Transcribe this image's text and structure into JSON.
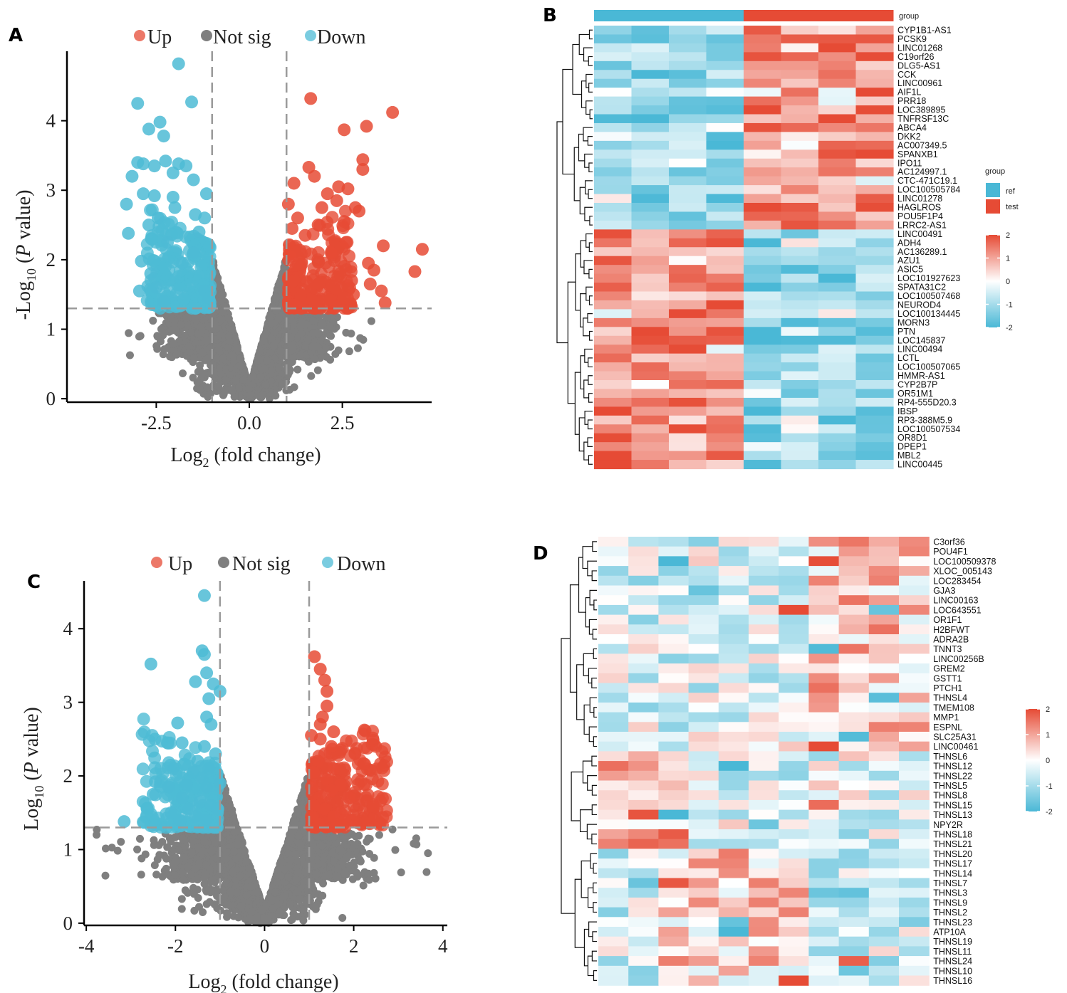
{
  "panels": {
    "A": "A",
    "B": "B",
    "C": "C",
    "D": "D"
  },
  "colors": {
    "up": "#e64b35",
    "down": "#4dbbd5",
    "not_sig": "#7f7f7f",
    "heat_low": "#4ab8d6",
    "heat_mid": "#ffffff",
    "heat_high": "#e64b35"
  },
  "chart_data": [
    {
      "id": "A",
      "type": "scatter",
      "legend": [
        "Up",
        "Not sig",
        "Down"
      ],
      "legend_placement": "top",
      "xlabel_main": "Log",
      "xlabel_sub": "2",
      "xlabel_rest": " (fold change)",
      "ylabel_main": "-Log",
      "ylabel_sub": "10",
      "ylabel_italic": "P",
      "ylabel_rest": " value)",
      "ylabel_open": " (",
      "x_ticks": [
        "-2.5",
        "0.0",
        "2.5"
      ],
      "x_tick_values": [
        -2.5,
        0.0,
        2.5
      ],
      "y_ticks": [
        "0",
        "1",
        "2",
        "3",
        "4"
      ],
      "y_tick_values": [
        0,
        1,
        2,
        3,
        4
      ],
      "xlim": [
        -4.9,
        4.9
      ],
      "ylim": [
        -0.05,
        5.0
      ],
      "fc_threshold": 1,
      "p_threshold": 1.3,
      "up_points": [
        [
          1.65,
          4.32
        ],
        [
          3.85,
          4.12
        ],
        [
          3.15,
          3.92
        ],
        [
          2.55,
          3.87
        ],
        [
          3.05,
          3.44
        ],
        [
          3.05,
          3.3
        ],
        [
          1.6,
          3.33
        ],
        [
          1.75,
          3.2
        ],
        [
          2.4,
          3.05
        ],
        [
          2.65,
          3.02
        ],
        [
          2.1,
          2.95
        ],
        [
          1.2,
          3.1
        ],
        [
          2.35,
          2.85
        ],
        [
          2.85,
          2.75
        ],
        [
          1.05,
          2.8
        ],
        [
          2.95,
          2.7
        ],
        [
          1.95,
          2.75
        ],
        [
          1.3,
          2.6
        ],
        [
          2.55,
          2.55
        ],
        [
          1.15,
          2.45
        ],
        [
          4.65,
          2.15
        ],
        [
          4.45,
          1.83
        ],
        [
          3.6,
          2.2
        ],
        [
          3.2,
          1.95
        ],
        [
          3.35,
          1.85
        ],
        [
          3.25,
          1.65
        ],
        [
          3.55,
          1.55
        ],
        [
          3.65,
          1.38
        ],
        [
          2.75,
          1.7
        ],
        [
          2.8,
          1.5
        ],
        [
          2.6,
          2.25
        ],
        [
          1.5,
          2.35
        ],
        [
          1.85,
          2.5
        ],
        [
          2.2,
          2.1
        ],
        [
          1.05,
          1.4
        ],
        [
          1.2,
          1.35
        ],
        [
          1.1,
          2.05
        ]
      ],
      "down_points": [
        [
          -1.9,
          4.82
        ],
        [
          -1.55,
          4.27
        ],
        [
          -3.0,
          4.25
        ],
        [
          -2.4,
          3.98
        ],
        [
          -2.7,
          3.88
        ],
        [
          -2.3,
          3.78
        ],
        [
          -3.0,
          3.4
        ],
        [
          -2.85,
          3.38
        ],
        [
          -2.55,
          3.35
        ],
        [
          -2.25,
          3.42
        ],
        [
          -1.9,
          3.38
        ],
        [
          -1.7,
          3.35
        ],
        [
          -3.15,
          3.2
        ],
        [
          -2.05,
          3.25
        ],
        [
          -1.5,
          3.15
        ],
        [
          -2.85,
          2.95
        ],
        [
          -2.55,
          2.92
        ],
        [
          -1.15,
          2.95
        ],
        [
          -2.05,
          2.9
        ],
        [
          -3.3,
          2.8
        ],
        [
          -2.0,
          2.75
        ],
        [
          -1.45,
          2.65
        ],
        [
          -2.45,
          2.6
        ],
        [
          -1.2,
          2.6
        ],
        [
          -2.7,
          2.5
        ],
        [
          -3.25,
          2.38
        ],
        [
          -1.35,
          2.4
        ],
        [
          -2.9,
          1.98
        ],
        [
          -2.65,
          1.8
        ],
        [
          -2.5,
          1.6
        ],
        [
          -2.95,
          1.55
        ],
        [
          -1.2,
          1.55
        ],
        [
          -2.2,
          2.25
        ],
        [
          -1.8,
          1.95
        ],
        [
          -1.5,
          2.1
        ],
        [
          -1.1,
          1.45
        ],
        [
          -2.3,
          1.4
        ]
      ]
    },
    {
      "id": "C",
      "type": "scatter",
      "legend": [
        "Up",
        "Not sig",
        "Down"
      ],
      "legend_placement": "top",
      "xlabel_main": "Log",
      "xlabel_sub": "2",
      "xlabel_rest": " (fold change)",
      "ylabel_main": "Log",
      "ylabel_sub": "10",
      "ylabel_italic": "P",
      "ylabel_rest": " value)",
      "ylabel_open": " (",
      "x_ticks": [
        "-4",
        "-2",
        "0",
        "2",
        "4"
      ],
      "x_tick_values": [
        -4,
        -2,
        0,
        2,
        4
      ],
      "y_ticks": [
        "0",
        "1",
        "2",
        "3",
        "4"
      ],
      "y_tick_values": [
        0,
        1,
        2,
        3,
        4
      ],
      "xlim": [
        -4.05,
        4.1
      ],
      "ylim": [
        -0.03,
        4.65
      ],
      "fc_threshold": 1,
      "p_threshold": 1.3,
      "up_points": [
        [
          1.12,
          3.62
        ],
        [
          1.25,
          3.45
        ],
        [
          1.35,
          3.3
        ],
        [
          1.4,
          3.15
        ],
        [
          1.4,
          2.95
        ],
        [
          1.3,
          2.8
        ],
        [
          1.25,
          2.7
        ],
        [
          1.55,
          2.6
        ],
        [
          1.05,
          2.55
        ],
        [
          1.25,
          2.5
        ],
        [
          1.5,
          2.4
        ],
        [
          1.35,
          2.3
        ],
        [
          1.2,
          2.2
        ],
        [
          1.55,
          2.1
        ],
        [
          1.1,
          2.05
        ],
        [
          1.4,
          1.95
        ],
        [
          1.7,
          1.88
        ],
        [
          1.05,
          1.85
        ],
        [
          1.5,
          1.8
        ],
        [
          1.25,
          1.72
        ],
        [
          1.9,
          1.7
        ],
        [
          1.1,
          1.6
        ],
        [
          1.35,
          1.55
        ],
        [
          1.7,
          1.5
        ],
        [
          1.55,
          1.45
        ],
        [
          1.95,
          1.4
        ],
        [
          1.8,
          1.4
        ],
        [
          1.2,
          1.35
        ],
        [
          1.05,
          1.45
        ],
        [
          1.6,
          1.3
        ]
      ],
      "down_points": [
        [
          -1.35,
          4.45
        ],
        [
          -1.4,
          3.7
        ],
        [
          -1.35,
          3.65
        ],
        [
          -2.55,
          3.52
        ],
        [
          -1.3,
          3.4
        ],
        [
          -1.55,
          3.28
        ],
        [
          -1.15,
          3.25
        ],
        [
          -1.0,
          3.15
        ],
        [
          -1.25,
          3.05
        ],
        [
          -1.95,
          2.72
        ],
        [
          -1.3,
          2.8
        ],
        [
          -1.2,
          2.7
        ],
        [
          -1.85,
          2.45
        ],
        [
          -1.35,
          2.4
        ],
        [
          -1.1,
          2.3
        ],
        [
          -1.5,
          2.2
        ],
        [
          -1.25,
          2.1
        ],
        [
          -2.05,
          2.1
        ],
        [
          -1.6,
          2.05
        ],
        [
          -1.4,
          1.98
        ],
        [
          -2.45,
          1.92
        ],
        [
          -2.15,
          1.85
        ],
        [
          -1.75,
          1.88
        ],
        [
          -1.3,
          1.85
        ],
        [
          -1.0,
          1.9
        ],
        [
          -2.5,
          1.75
        ],
        [
          -1.85,
          1.7
        ],
        [
          -1.45,
          1.65
        ],
        [
          -1.2,
          1.6
        ],
        [
          -1.7,
          1.55
        ],
        [
          -2.1,
          1.5
        ],
        [
          -1.55,
          1.45
        ],
        [
          -3.15,
          1.38
        ],
        [
          -1.9,
          1.4
        ],
        [
          -1.3,
          1.4
        ],
        [
          -1.05,
          1.55
        ]
      ]
    },
    {
      "id": "B",
      "type": "heatmap",
      "legend_title": "group",
      "group_bar_label": "group",
      "groups": [
        "ref",
        "test"
      ],
      "column_groups": [
        "ref",
        "ref",
        "ref",
        "ref",
        "test",
        "test",
        "test",
        "test"
      ],
      "scale_ticks": [
        "2",
        "1",
        "0",
        "-1",
        "-2"
      ],
      "scale_tick_values": [
        2,
        1,
        0,
        -1,
        -2
      ],
      "split_after_row": 23,
      "rows": [
        "CYP1B1-AS1",
        "PCSK9",
        "LINC01268",
        "C19orf26",
        "DLG5-AS1",
        "CCK",
        "LINC00961",
        "AIF1L",
        "PRR18",
        "LOC389895",
        "TNFRSF13C",
        "ABCA4",
        "DKK2",
        "AC007349.5",
        "SPANXB1",
        "IPO11",
        "AC124997.1",
        "CTC-471C19.1",
        "LOC100505784",
        "LINC01278",
        "HAGLROS",
        "POU5F1P4",
        "LRRC2-AS1",
        "LINC00491",
        "ADH4",
        "AC136289.1",
        "AZU1",
        "ASIC5",
        "LOC101927623",
        "SPATA31C2",
        "LOC100507468",
        "NEUROD4",
        "LOC100134445",
        "MORN3",
        "PTN",
        "LOC145837",
        "LINC00494",
        "LCTL",
        "LOC100507065",
        "HMMR-AS1",
        "CYP2B7P",
        "OR51M1",
        "RP4-555D20.3",
        "IBSP",
        "RP3-388M5.9",
        "LOC100507534",
        "OR8D1",
        "DPEP1",
        "MBL2",
        "LINC00445"
      ]
    },
    {
      "id": "D",
      "type": "heatmap",
      "columns": 11,
      "scale_ticks": [
        "2",
        "1",
        "0",
        "-1",
        "-2"
      ],
      "scale_tick_values": [
        2,
        1,
        0,
        -1,
        -2
      ],
      "rows": [
        "C3orf36",
        "POU4F1",
        "LOC100509378",
        "XLOC_005143",
        "LOC283454",
        "GJA3",
        "LINC00163",
        "LOC643551",
        "OR1F1",
        "H2BFWT",
        "ADRA2B",
        "TNNT3",
        "LINC00256B",
        "GREM2",
        "GSTT1",
        "PTCH1",
        "THNSL4",
        "TMEM108",
        "MMP1",
        "ESPNL",
        "SLC25A31",
        "LINC00461",
        "THNSL6",
        "THNSL12",
        "THNSL22",
        "THNSL5",
        "THNSL8",
        "THNSL15",
        "THNSL13",
        "NPY2R",
        "THNSL18",
        "THNSL21",
        "THNSL20",
        "THNSL17",
        "THNSL14",
        "THNSL7",
        "THNSL3",
        "THNSL9",
        "THNSL2",
        "THNSL23",
        "ATP10A",
        "THNSL19",
        "THNSL11",
        "THNSL24",
        "THNSL10",
        "THNSL16"
      ]
    }
  ]
}
